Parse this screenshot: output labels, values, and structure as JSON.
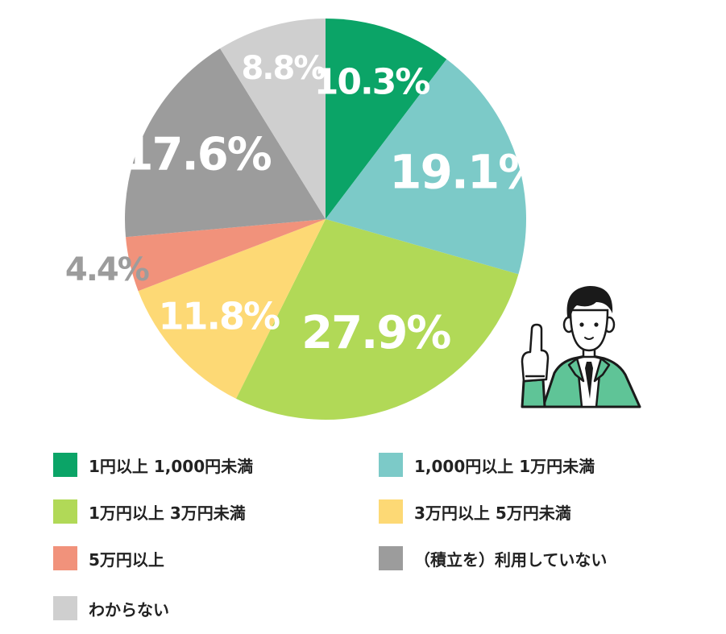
{
  "chart_data": {
    "type": "pie",
    "categories": [
      "1円以上 1,000円未満",
      "1,000円以上 1万円未満",
      "1万円以上 3万円未満",
      "3万円以上 5万円未満",
      "5万円以上",
      "（積立を）利用していない",
      "わからない"
    ],
    "values": [
      10.3,
      19.1,
      27.9,
      11.8,
      4.4,
      17.6,
      8.8
    ],
    "value_labels": [
      "10.3%",
      "19.1%",
      "27.9%",
      "11.8%",
      "4.4%",
      "17.6%",
      "8.8%"
    ],
    "colors": [
      "#0ba467",
      "#7ccac8",
      "#b1d957",
      "#fdd975",
      "#f1927b",
      "#9c9c9c",
      "#cfcfcf"
    ],
    "label_colors": [
      "#ffffff",
      "#ffffff",
      "#ffffff",
      "#ffffff",
      "#9c9c9c",
      "#ffffff",
      "#ffffff"
    ],
    "start": "12 o'clock, clockwise",
    "legend_placement": "bottom, two columns"
  },
  "illustration": {
    "icon": "pointing-businessman-icon",
    "jacket_color": "#5fc497"
  }
}
